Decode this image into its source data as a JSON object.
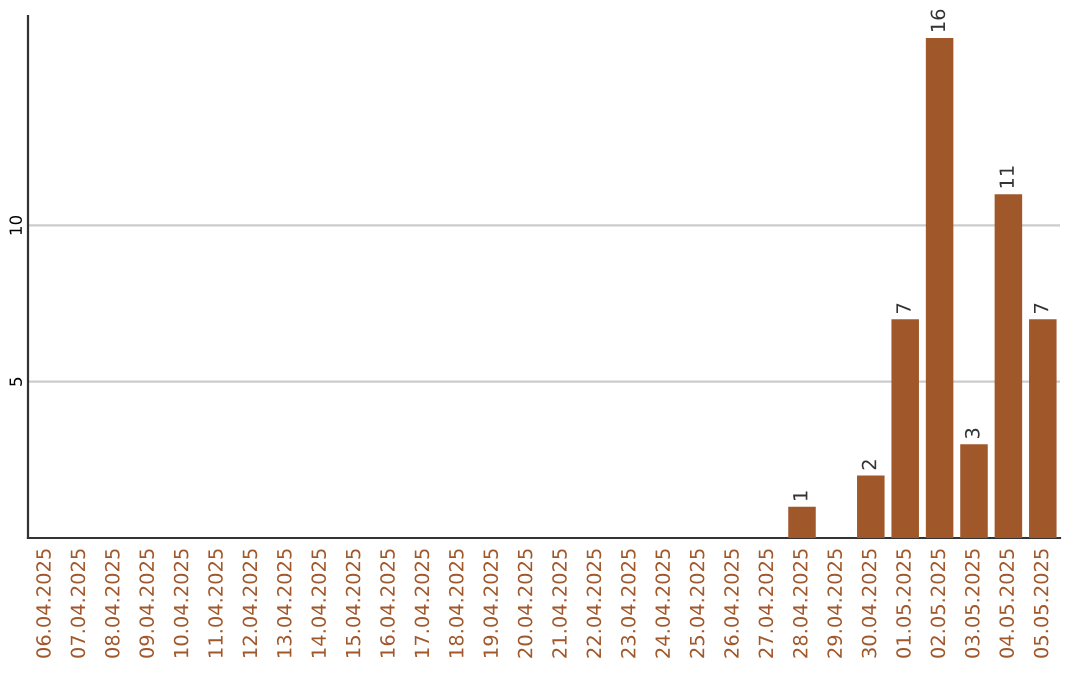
{
  "chart_data": {
    "type": "bar",
    "categories": [
      "06.04.2025",
      "07.04.2025",
      "08.04.2025",
      "09.04.2025",
      "10.04.2025",
      "11.04.2025",
      "12.04.2025",
      "13.04.2025",
      "14.04.2025",
      "15.04.2025",
      "16.04.2025",
      "17.04.2025",
      "18.04.2025",
      "19.04.2025",
      "20.04.2025",
      "21.04.2025",
      "22.04.2025",
      "23.04.2025",
      "24.04.2025",
      "25.04.2025",
      "26.04.2025",
      "27.04.2025",
      "28.04.2025",
      "29.04.2025",
      "30.04.2025",
      "01.05.2025",
      "02.05.2025",
      "03.05.2025",
      "04.05.2025",
      "05.05.2025"
    ],
    "values": [
      0,
      0,
      0,
      0,
      0,
      0,
      0,
      0,
      0,
      0,
      0,
      0,
      0,
      0,
      0,
      0,
      0,
      0,
      0,
      0,
      0,
      0,
      1,
      0,
      2,
      7,
      16,
      3,
      11,
      7
    ],
    "value_labels": [
      null,
      null,
      null,
      null,
      null,
      null,
      null,
      null,
      null,
      null,
      null,
      null,
      null,
      null,
      null,
      null,
      null,
      null,
      null,
      null,
      null,
      null,
      "1",
      null,
      "2",
      "7",
      "16",
      "3",
      "11",
      "7"
    ],
    "color": "#a0572a",
    "ylim": [
      0,
      16.7
    ],
    "yticks": [
      5,
      10
    ],
    "grid": "y"
  }
}
